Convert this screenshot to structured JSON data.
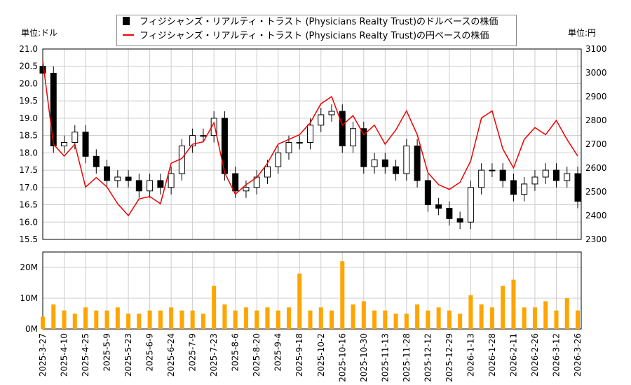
{
  "legend": {
    "usd": "フィジシャンズ・リアルティ・トラスト (Physicians Realty Trust)のドルベースの株価",
    "jpy": "フィジシャンズ・リアルティ・トラスト (Physicians Realty Trust)の円ベースの株価"
  },
  "units": {
    "left": "単位:ドル",
    "right": "単位:円"
  },
  "chart_data": [
    {
      "type": "candlestick+line",
      "y_left": {
        "range": [
          15.5,
          21.0
        ],
        "ticks": [
          "15.5",
          "16.0",
          "16.5",
          "17.0",
          "17.5",
          "18.0",
          "18.5",
          "19.0",
          "19.5",
          "20.0",
          "20.5",
          "21.0"
        ]
      },
      "y_right": {
        "range": [
          2300,
          3100
        ],
        "ticks": [
          "2300",
          "2400",
          "2500",
          "2600",
          "2700",
          "2800",
          "2900",
          "3000",
          "3100"
        ]
      },
      "grid": true,
      "series": [
        {
          "name": "フィジシャンズ・リアルティ・トラスト (Physicians Realty Trust)のドルベースの株価",
          "color": "#000000",
          "values": [
            20.3,
            18.2,
            18.3,
            18.6,
            17.9,
            17.6,
            17.2,
            17.3,
            17.2,
            16.9,
            17.2,
            17.0,
            17.4,
            18.2,
            18.5,
            18.5,
            19.0,
            17.4,
            16.9,
            17.0,
            17.3,
            17.6,
            18.0,
            18.3,
            18.3,
            18.8,
            19.1,
            19.2,
            18.2,
            18.7,
            17.6,
            17.8,
            17.6,
            17.4,
            18.2,
            17.2,
            16.5,
            16.4,
            16.1,
            16.0,
            17.0,
            17.5,
            17.5,
            17.2,
            16.8,
            17.1,
            17.3,
            17.5,
            17.2,
            17.4,
            16.6
          ]
        },
        {
          "name": "フィジシャンズ・リアルティ・トラスト (Physicians Realty Trust)の円ベースの株価",
          "color": "#ee0000",
          "values": [
            3050,
            2700,
            2650,
            2700,
            2520,
            2560,
            2520,
            2450,
            2400,
            2470,
            2480,
            2450,
            2620,
            2640,
            2700,
            2710,
            2790,
            2580,
            2490,
            2530,
            2560,
            2620,
            2700,
            2720,
            2740,
            2790,
            2870,
            2900,
            2780,
            2820,
            2740,
            2780,
            2700,
            2760,
            2840,
            2740,
            2580,
            2530,
            2510,
            2540,
            2630,
            2810,
            2840,
            2680,
            2600,
            2720,
            2770,
            2740,
            2800,
            2720,
            2650
          ]
        }
      ]
    },
    {
      "type": "bar",
      "y": {
        "range": [
          0,
          25
        ],
        "ticks": [
          "0M",
          "10M",
          "20M"
        ]
      },
      "color": "#ffa500",
      "values": [
        4,
        8,
        6,
        5,
        7,
        6,
        6,
        7,
        5,
        5,
        6,
        6,
        7,
        6,
        6,
        5,
        14,
        8,
        6,
        7,
        6,
        7,
        6,
        7,
        18,
        6,
        7,
        6,
        22,
        8,
        9,
        6,
        6,
        5,
        5,
        8,
        6,
        7,
        6,
        5,
        11,
        8,
        7,
        14,
        16,
        7,
        7,
        9,
        6,
        10,
        6
      ],
      "x_ticks": [
        "2025-3-27",
        "2025-4-10",
        "2025-4-25",
        "2025-5-9",
        "2025-5-23",
        "2025-6-9",
        "2025-6-24",
        "2025-7-9",
        "2025-7-23",
        "2025-8-6",
        "2025-8-20",
        "2025-9-4",
        "2025-9-18",
        "2025-10-2",
        "2025-10-16",
        "2025-10-30",
        "2025-11-13",
        "2025-11-28",
        "2025-12-12",
        "2025-12-29",
        "2026-1-13",
        "2026-1-28",
        "2026-2-11",
        "2026-2-26",
        "2026-3-12",
        "2026-3-26"
      ]
    }
  ]
}
